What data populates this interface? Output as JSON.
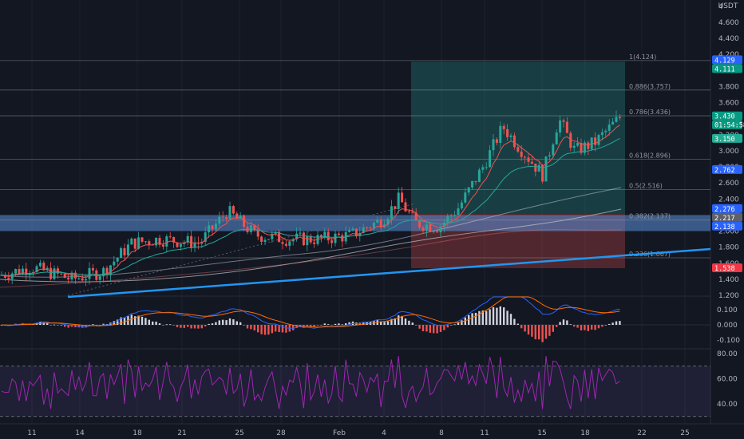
{
  "currency": "USDT",
  "price_axis_labels": [
    "4",
    "4.600",
    "4.400",
    "4.200",
    "4.000",
    "3.800",
    "3.600",
    "3.400",
    "3.200",
    "3.000",
    "2.800",
    "2.600",
    "2.400",
    "2.200",
    "2.000",
    "1.800",
    "1.600",
    "1.400",
    "1.200"
  ],
  "fib_levels": [
    {
      "label": "1(4.124)",
      "value": 4.124
    },
    {
      "label": "0.886(3.757)",
      "value": 3.757
    },
    {
      "label": "0.786(3.436)",
      "value": 3.436
    },
    {
      "label": "0.618(2.896)",
      "value": 2.896
    },
    {
      "label": "0.5(2.516)",
      "value": 2.516
    },
    {
      "label": "0.382(2.137)",
      "value": 2.137
    },
    {
      "label": "0.236(1.667)",
      "value": 1.667
    }
  ],
  "price_badges": [
    {
      "text": "4.129",
      "value": 4.129,
      "color": "#2962ff"
    },
    {
      "text": "4.111",
      "value": 4.111,
      "color": "#089981"
    },
    {
      "text": "3.430",
      "value": 3.43,
      "color": "#089981"
    },
    {
      "text": "01:54:58",
      "value": 3.34,
      "color": "#089981"
    },
    {
      "text": "3.150",
      "value": 3.15,
      "color": "#22ab94"
    },
    {
      "text": "2.762",
      "value": 2.762,
      "color": "#2962ff"
    },
    {
      "text": "2.276",
      "value": 2.276,
      "color": "#2962ff"
    },
    {
      "text": "2.217",
      "value": 2.217,
      "color": "#5d606b"
    },
    {
      "text": "2.138",
      "value": 2.138,
      "color": "#2962ff"
    },
    {
      "text": "1.538",
      "value": 1.538,
      "color": "#f23645"
    }
  ],
  "macd_axis_labels": [
    "0.100",
    "0.000",
    "-0.100"
  ],
  "rsi_axis_labels": [
    "80.00",
    "60.00",
    "40.00"
  ],
  "time_axis_labels": [
    "11",
    "14",
    "18",
    "21",
    "25",
    "28",
    "Feb",
    "4",
    "8",
    "11",
    "15",
    "18",
    "22",
    "25"
  ],
  "colors": {
    "background": "#131722",
    "up": "#26a69a",
    "down": "#ef5350",
    "trendline": "#2196f3",
    "rsi": "#9c27b0",
    "macd": "#2962ff",
    "signal": "#ff6d00"
  },
  "chart_data": {
    "type": "candlestick",
    "ylim": [
      1.2,
      4.8
    ],
    "long_position": {
      "entry": 2.217,
      "target": 4.111,
      "stop": 1.538
    },
    "support_zone": [
      2.0,
      2.2
    ],
    "macd_ylim": [
      -0.15,
      0.17
    ],
    "rsi_ylim": [
      25,
      85
    ],
    "rsi_bands": [
      70,
      30
    ]
  }
}
